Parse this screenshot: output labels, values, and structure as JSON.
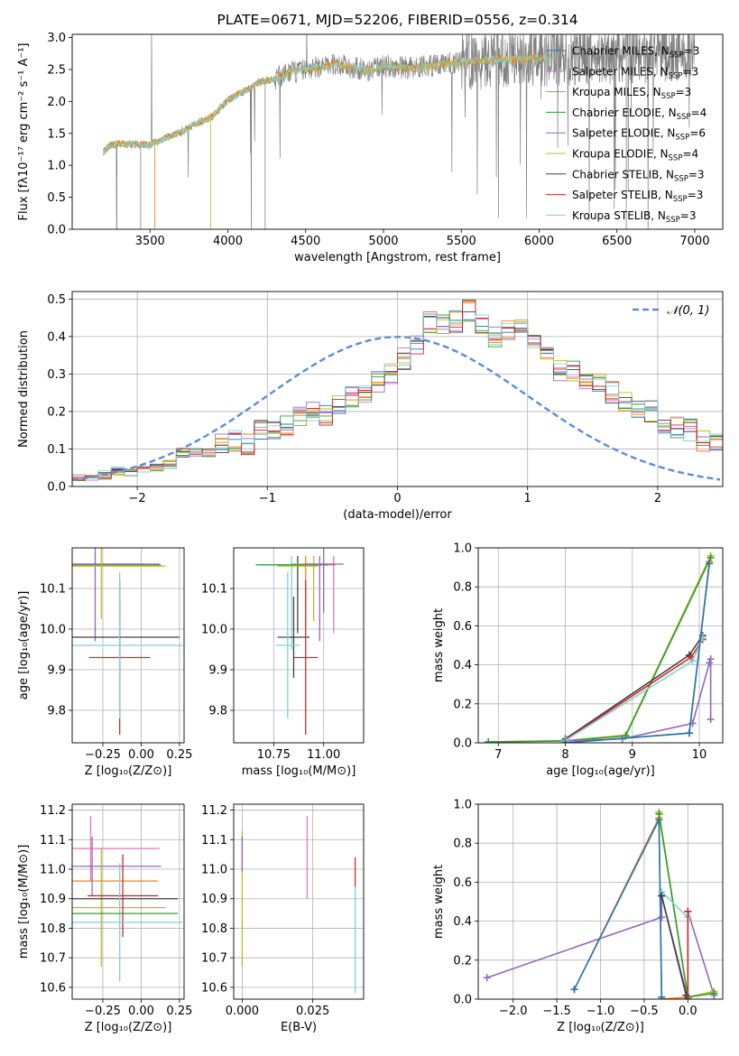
{
  "colors": {
    "data": "#808080",
    "chabrier_miles": "#1f77b4",
    "salpeter_miles": "#e377c2",
    "kroupa_miles": "#ff7f0e",
    "chabrier_elodie": "#2ca02c",
    "salpeter_elodie": "#9467bd",
    "kroupa_elodie": "#bcbd22",
    "chabrier_stelib": "#404040",
    "salpeter_stelib": "#d62728",
    "kroupa_stelib": "#7fd0d8",
    "gauss": "#5b8bd9",
    "grid": "#b0b0b0"
  },
  "chart_data": [
    {
      "type": "line",
      "title": "PLATE=0671, MJD=52206, FIBERID=0556, z=0.314",
      "xlabel": "wavelength [Angstrom, rest frame]",
      "ylabel": "Flux [fλ10⁻¹⁷ erg cm⁻² s⁻¹ A⁻¹]",
      "xlim": [
        3000,
        7180
      ],
      "ylim": [
        0,
        3.05
      ],
      "xticks": [
        3500,
        4000,
        4500,
        5000,
        5500,
        6000,
        6500,
        7000
      ],
      "yticks": [
        0.0,
        0.5,
        1.0,
        1.5,
        2.0,
        2.5,
        3.0
      ],
      "grid": false,
      "legend_position": "right",
      "legend": [
        {
          "label": "Chabrier MILES, N",
          "sub": "SSP",
          "suffix": "=3",
          "color_key": "chabrier_miles"
        },
        {
          "label": "Salpeter MILES, N",
          "sub": "SSP",
          "suffix": "=3",
          "color_key": "salpeter_miles"
        },
        {
          "label": "Kroupa MILES, N",
          "sub": "SSP",
          "suffix": "=3",
          "color_key": "kroupa_miles"
        },
        {
          "label": "Chabrier ELODIE, N",
          "sub": "SSP",
          "suffix": "=4",
          "color_key": "chabrier_elodie"
        },
        {
          "label": "Salpeter ELODIE, N",
          "sub": "SSP",
          "suffix": "=6",
          "color_key": "salpeter_elodie"
        },
        {
          "label": "Kroupa ELODIE, N",
          "sub": "SSP",
          "suffix": "=4",
          "color_key": "kroupa_elodie"
        },
        {
          "label": "Chabrier STELIB, N",
          "sub": "SSP",
          "suffix": "=3",
          "color_key": "chabrier_stelib"
        },
        {
          "label": "Salpeter STELIB, N",
          "sub": "SSP",
          "suffix": "=3",
          "color_key": "salpeter_stelib"
        },
        {
          "label": "Kroupa STELIB, N",
          "sub": "SSP",
          "suffix": "=3",
          "color_key": "kroupa_stelib"
        }
      ],
      "spectrum_start": 3200,
      "spectrum_end": 7000,
      "continuum": [
        [
          3200,
          1.22
        ],
        [
          3260,
          1.33
        ],
        [
          3400,
          1.33
        ],
        [
          3500,
          1.32
        ],
        [
          3600,
          1.43
        ],
        [
          3700,
          1.52
        ],
        [
          3800,
          1.66
        ],
        [
          3900,
          1.76
        ],
        [
          4000,
          2.02
        ],
        [
          4100,
          2.15
        ],
        [
          4200,
          2.3
        ],
        [
          4300,
          2.35
        ],
        [
          4400,
          2.45
        ],
        [
          4500,
          2.5
        ],
        [
          4700,
          2.58
        ],
        [
          4900,
          2.48
        ],
        [
          5000,
          2.55
        ],
        [
          5200,
          2.52
        ],
        [
          5500,
          2.62
        ],
        [
          6000,
          2.68
        ],
        [
          6500,
          2.72
        ],
        [
          7000,
          2.75
        ]
      ]
    },
    {
      "type": "bar",
      "xlabel": "(data-model)/error",
      "ylabel": "Normed distribution",
      "xlim": [
        -2.5,
        2.5
      ],
      "ylim": [
        0,
        0.52
      ],
      "xticks": [
        -2,
        -1,
        0,
        1,
        2
      ],
      "yticks": [
        0.0,
        0.1,
        0.2,
        0.3,
        0.4,
        0.5
      ],
      "grid": true,
      "legend_position": "top-right",
      "legend_label": "𝒩(0, 1)",
      "bin_width": 0.1,
      "x_start": -2.5,
      "values": [
        0.02,
        0.02,
        0.03,
        0.04,
        0.04,
        0.05,
        0.05,
        0.06,
        0.09,
        0.09,
        0.09,
        0.12,
        0.12,
        0.11,
        0.15,
        0.15,
        0.16,
        0.19,
        0.2,
        0.19,
        0.22,
        0.24,
        0.25,
        0.28,
        0.3,
        0.34,
        0.38,
        0.44,
        0.43,
        0.44,
        0.47,
        0.43,
        0.4,
        0.42,
        0.44,
        0.38,
        0.36,
        0.31,
        0.31,
        0.29,
        0.27,
        0.25,
        0.23,
        0.21,
        0.2,
        0.17,
        0.16,
        0.15,
        0.12,
        0.11,
        0.09,
        0.08,
        0.08,
        0.06,
        0.06,
        0.05,
        0.05,
        0.04,
        0.04,
        0.03
      ]
    },
    {
      "type": "scatter",
      "xlabel": "Z [log₁₀(Z/Z⊙)]",
      "ylabel": "age  [log₁₀(age/yr)]",
      "xlim": [
        -0.45,
        0.28
      ],
      "ylim": [
        9.72,
        10.2
      ],
      "xticks": [
        -0.25,
        0.0,
        0.25
      ],
      "yticks": [
        9.8,
        9.9,
        10.0,
        10.1
      ],
      "grid": true,
      "errorbars": [
        {
          "x": -0.33,
          "xerr": 0.35,
          "y": 10.16,
          "yerr": 0.0,
          "color_key": "salpeter_miles"
        },
        {
          "x": -0.29,
          "xerr": 0.16,
          "y": 10.158,
          "yerr": 0.0,
          "color_key": "kroupa_miles"
        },
        {
          "x": -0.33,
          "xerr": 0.45,
          "y": 10.158,
          "yerr": 0.0,
          "color_key": "chabrier_miles"
        },
        {
          "x": -0.32,
          "xerr": 0.45,
          "y": 10.158,
          "yerr": 0.0,
          "color_key": "chabrier_elodie"
        },
        {
          "x": -0.3,
          "xerr": 0.42,
          "y": 10.16,
          "yerr": 0.19,
          "color_key": "salpeter_elodie"
        },
        {
          "x": -0.26,
          "xerr": 0.42,
          "y": 10.155,
          "yerr": 0.13,
          "color_key": "kroupa_elodie"
        },
        {
          "x": -0.14,
          "xerr": 0.39,
          "y": 9.98,
          "yerr": 0.1,
          "color_key": "chabrier_stelib"
        },
        {
          "x": -0.14,
          "xerr": 0.2,
          "y": 9.93,
          "yerr": 0.19,
          "color_key": "salpeter_stelib"
        },
        {
          "x": -0.14,
          "xerr": 0.41,
          "y": 9.96,
          "yerr": 0.18,
          "color_key": "kroupa_stelib"
        }
      ]
    },
    {
      "type": "scatter",
      "xlabel": "mass [log₁₀(M/M⊙)]",
      "ylabel": "",
      "xlim": [
        10.55,
        11.2
      ],
      "ylim": [
        9.72,
        10.2
      ],
      "xticks": [
        10.75,
        11.0
      ],
      "yticks": [
        9.8,
        9.9,
        10.0,
        10.1
      ],
      "grid": true,
      "errorbars": [
        {
          "x": 10.95,
          "xerr": 0.11,
          "y": 10.16,
          "yerr": 0.0,
          "color_key": "salpeter_miles"
        },
        {
          "x": 10.96,
          "xerr": 0.1,
          "y": 10.158,
          "yerr": 0.0,
          "color_key": "kroupa_miles"
        },
        {
          "x": 10.85,
          "xerr": 0.17,
          "y": 10.158,
          "yerr": 0.0,
          "color_key": "chabrier_miles"
        },
        {
          "x": 10.83,
          "xerr": 0.17,
          "y": 10.158,
          "yerr": 0.0,
          "color_key": "chabrier_elodie"
        },
        {
          "x": 11.0,
          "xerr": 0.1,
          "y": 10.16,
          "yerr": 0.12,
          "color_key": "salpeter_elodie"
        },
        {
          "x": 10.87,
          "xerr": 0.1,
          "y": 10.155,
          "yerr": 0.0,
          "color_key": "kroupa_elodie"
        },
        {
          "x": 10.85,
          "xerr": 0.08,
          "y": 9.98,
          "yerr": 0.1,
          "color_key": "chabrier_stelib"
        },
        {
          "x": 10.91,
          "xerr": 0.06,
          "y": 9.93,
          "yerr": 0.19,
          "color_key": "salpeter_stelib"
        },
        {
          "x": 10.82,
          "xerr": 0.06,
          "y": 9.96,
          "yerr": 0.18,
          "color_key": "kroupa_stelib"
        }
      ],
      "vlines": [
        {
          "x": 10.91,
          "y0": 10.005,
          "y1": 10.18,
          "color_key": "kroupa_miles"
        },
        {
          "x": 10.98,
          "y0": 9.97,
          "y1": 10.18,
          "color_key": "salpeter_elodie"
        },
        {
          "x": 10.95,
          "y0": 10.02,
          "y1": 10.18,
          "color_key": "kroupa_elodie"
        },
        {
          "x": 10.84,
          "y0": 9.95,
          "y1": 10.18,
          "color_key": "kroupa_stelib"
        },
        {
          "x": 10.87,
          "y0": 9.99,
          "y1": 10.18,
          "color_key": "chabrier_stelib"
        },
        {
          "x": 11.05,
          "y0": 9.99,
          "y1": 10.18,
          "color_key": "salpeter_miles"
        }
      ]
    },
    {
      "type": "line",
      "xlabel": "age  [log₁₀(age/yr)]",
      "ylabel": "mass weight",
      "xlim": [
        6.7,
        10.35
      ],
      "ylim": [
        0,
        1.0
      ],
      "xticks": [
        7,
        8,
        9,
        10
      ],
      "yticks": [
        0.0,
        0.2,
        0.4,
        0.6,
        0.8,
        1.0
      ],
      "grid": true,
      "series": [
        {
          "color_key": "kroupa_elodie",
          "points": [
            [
              6.85,
              0.005
            ],
            [
              8.0,
              0.01
            ],
            [
              8.9,
              0.04
            ],
            [
              10.17,
              0.96
            ]
          ]
        },
        {
          "color_key": "chabrier_elodie",
          "points": [
            [
              6.85,
              0.004
            ],
            [
              8.0,
              0.01
            ],
            [
              8.9,
              0.035
            ],
            [
              10.17,
              0.95
            ]
          ]
        },
        {
          "color_key": "salpeter_elodie",
          "points": [
            [
              8.0,
              0.01
            ],
            [
              8.85,
              0.02
            ],
            [
              9.9,
              0.1
            ],
            [
              10.15,
              0.41
            ],
            [
              10.17,
              0.43
            ],
            [
              10.17,
              0.12
            ]
          ]
        },
        {
          "color_key": "chabrier_stelib",
          "points": [
            [
              8.0,
              0.02
            ],
            [
              9.85,
              0.45
            ],
            [
              10.05,
              0.55
            ]
          ]
        },
        {
          "color_key": "salpeter_stelib",
          "points": [
            [
              8.0,
              0.015
            ],
            [
              9.88,
              0.44
            ],
            [
              10.05,
              0.53
            ]
          ]
        },
        {
          "color_key": "kroupa_stelib",
          "points": [
            [
              8.0,
              0.012
            ],
            [
              9.9,
              0.42
            ],
            [
              10.05,
              0.54
            ]
          ]
        },
        {
          "color_key": "kroupa_miles",
          "points": [
            [
              8.0,
              0.0
            ],
            [
              9.85,
              0.05
            ],
            [
              10.15,
              0.93
            ]
          ]
        },
        {
          "color_key": "chabrier_miles",
          "points": [
            [
              8.0,
              0.0
            ],
            [
              9.85,
              0.05
            ],
            [
              10.15,
              0.92
            ]
          ]
        }
      ]
    },
    {
      "type": "scatter",
      "xlabel": "Z [log₁₀(Z/Z⊙)]",
      "ylabel": "mass [log₁₀(M/M⊙)]",
      "xlim": [
        -0.45,
        0.28
      ],
      "ylim": [
        10.56,
        11.22
      ],
      "xticks": [
        -0.25,
        0.0,
        0.25
      ],
      "yticks": [
        10.6,
        10.7,
        10.8,
        10.9,
        11.0,
        11.1,
        11.2
      ],
      "grid": true,
      "errorbars": [
        {
          "x": -0.33,
          "xerr": 0.45,
          "y": 11.07,
          "yerr": 0.11,
          "color_key": "salpeter_miles"
        },
        {
          "x": -0.29,
          "xerr": 0.4,
          "y": 10.96,
          "yerr": 0.0,
          "color_key": "kroupa_miles"
        },
        {
          "x": -0.32,
          "xerr": 0.45,
          "y": 11.01,
          "yerr": 0.1,
          "color_key": "salpeter_elodie"
        },
        {
          "x": -0.26,
          "xerr": 0.42,
          "y": 10.87,
          "yerr": 0.2,
          "color_key": "kroupa_elodie"
        },
        {
          "x": -0.14,
          "xerr": 0.38,
          "y": 10.9,
          "yerr": 0.0,
          "color_key": "chabrier_stelib"
        },
        {
          "x": -0.12,
          "xerr": 0.23,
          "y": 10.91,
          "yerr": 0.14,
          "color_key": "salpeter_stelib"
        },
        {
          "x": -0.14,
          "xerr": 0.41,
          "y": 10.82,
          "yerr": 0.2,
          "color_key": "kroupa_stelib"
        },
        {
          "x": -0.14,
          "xerr": 0.38,
          "y": 10.85,
          "yerr": 0.0,
          "color_key": "chabrier_elodie"
        }
      ]
    },
    {
      "type": "scatter",
      "xlabel": "E(B-V)",
      "ylabel": "",
      "xlim": [
        -0.003,
        0.043
      ],
      "ylim": [
        10.56,
        11.22
      ],
      "xticks": [
        0.0,
        0.025
      ],
      "yticks": [
        10.6,
        10.7,
        10.8,
        10.9,
        11.0,
        11.1,
        11.2
      ],
      "grid": true,
      "errorbars": [
        {
          "x": 0.0,
          "xerr": 0.0,
          "y": 10.9,
          "yerr": 0.23,
          "color_key": "kroupa_elodie"
        },
        {
          "x": 0.0,
          "xerr": 0.0,
          "y": 11.05,
          "yerr": 0.06,
          "color_key": "salpeter_elodie"
        },
        {
          "x": 0.023,
          "xerr": 0.0,
          "y": 11.04,
          "yerr": 0.14,
          "color_key": "salpeter_miles"
        },
        {
          "x": 0.04,
          "xerr": 0.0,
          "y": 10.76,
          "yerr": 0.18,
          "color_key": "kroupa_stelib"
        },
        {
          "x": 0.04,
          "xerr": 0.0,
          "y": 10.99,
          "yerr": 0.05,
          "color_key": "salpeter_stelib"
        }
      ]
    },
    {
      "type": "line",
      "xlabel": "Z [log₁₀(Z/Z⊙)]",
      "ylabel": "mass weight",
      "xlim": [
        -2.4,
        0.4
      ],
      "ylim": [
        0,
        1.0
      ],
      "xticks": [
        -2.0,
        -1.5,
        -1.0,
        -0.5,
        0.0
      ],
      "yticks": [
        0.0,
        0.2,
        0.4,
        0.6,
        0.8,
        1.0
      ],
      "grid": true,
      "series": [
        {
          "color_key": "salpeter_elodie",
          "points": [
            [
              -2.3,
              0.11
            ],
            [
              -0.3,
              0.42
            ],
            [
              -0.3,
              0.53
            ],
            [
              0.0,
              0.0
            ],
            [
              0.0,
              0.45
            ],
            [
              0.3,
              0.02
            ]
          ]
        },
        {
          "color_key": "kroupa_miles",
          "points": [
            [
              -1.3,
              0.05
            ],
            [
              -0.33,
              0.93
            ],
            [
              -0.3,
              0.0
            ],
            [
              0.0,
              0.01
            ]
          ]
        },
        {
          "color_key": "chabrier_miles",
          "points": [
            [
              -1.3,
              0.05
            ],
            [
              -0.33,
              0.92
            ],
            [
              -0.3,
              0.01
            ]
          ]
        },
        {
          "color_key": "kroupa_elodie",
          "points": [
            [
              -0.33,
              0.96
            ],
            [
              0.0,
              0.01
            ],
            [
              0.3,
              0.04
            ]
          ]
        },
        {
          "color_key": "chabrier_elodie",
          "points": [
            [
              -0.33,
              0.95
            ],
            [
              0.0,
              0.01
            ],
            [
              0.3,
              0.03
            ]
          ]
        },
        {
          "color_key": "kroupa_stelib",
          "points": [
            [
              -0.3,
              0.55
            ],
            [
              0.0,
              0.42
            ],
            [
              0.0,
              0.0
            ]
          ]
        },
        {
          "color_key": "chabrier_stelib",
          "points": [
            [
              -0.3,
              0.53
            ],
            [
              -0.02,
              0.02
            ]
          ]
        },
        {
          "color_key": "salpeter_stelib",
          "points": [
            [
              0.0,
              0.45
            ],
            [
              0.0,
              0.0
            ]
          ]
        }
      ]
    }
  ]
}
